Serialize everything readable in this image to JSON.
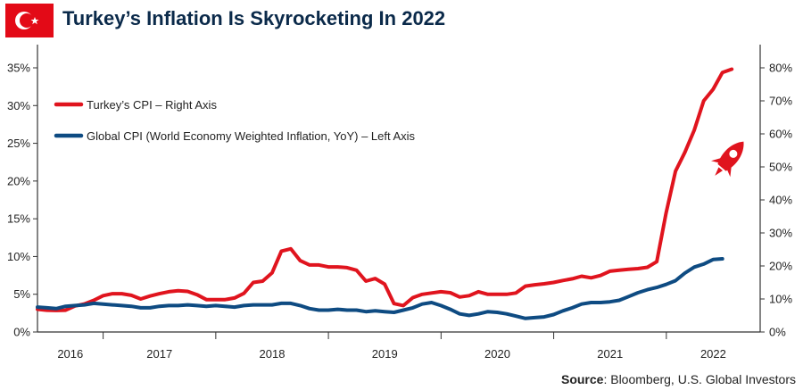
{
  "header": {
    "title": "Turkey’s Inflation Is Skyrocketing In 2022",
    "flag_icon": "turkey-flag-icon"
  },
  "source": {
    "label": "Source",
    "text": ": Bloomberg, U.S. Global Investors"
  },
  "colors": {
    "turkey": "#e0141e",
    "global": "#0e4b82",
    "title": "#0b2a4a",
    "flag": "#e30a17"
  },
  "chart_data": {
    "type": "line",
    "title": "Turkey’s Inflation Is Skyrocketing In 2022",
    "x_tick_labels": [
      "2016",
      "2017",
      "2018",
      "2019",
      "2020",
      "2021",
      "2022"
    ],
    "x_range": [
      2015.917,
      2022.333
    ],
    "y_left": {
      "ticks": [
        "0%",
        "5%",
        "10%",
        "15%",
        "20%",
        "25%",
        "30%",
        "35%"
      ],
      "range": [
        0,
        35
      ]
    },
    "y_right": {
      "ticks": [
        "0%",
        "10%",
        "20%",
        "30%",
        "40%",
        "50%",
        "60%",
        "70%",
        "80%"
      ],
      "range": [
        0,
        80
      ]
    },
    "legend_position": "top-left",
    "decorative_icon": "rocket-icon",
    "series": [
      {
        "name": "Turkey’s CPI – Right Axis",
        "axis": "right",
        "x_start": 2015.917,
        "x_step": 0.0833,
        "values": [
          6.9,
          6.6,
          6.5,
          6.6,
          7.9,
          8.5,
          9.6,
          11.0,
          11.6,
          11.6,
          11.1,
          10.0,
          10.9,
          11.6,
          12.2,
          12.5,
          12.3,
          11.3,
          9.8,
          9.8,
          9.8,
          10.3,
          11.7,
          15.0,
          15.4,
          17.9,
          24.5,
          25.2,
          21.6,
          20.3,
          20.3,
          19.7,
          19.7,
          19.5,
          18.7,
          15.4,
          16.2,
          14.5,
          8.6,
          8.0,
          10.4,
          11.4,
          11.8,
          12.2,
          11.9,
          10.6,
          11.0,
          12.2,
          11.4,
          11.4,
          11.4,
          11.8,
          13.9,
          14.3,
          14.6,
          15.0,
          15.6,
          16.1,
          16.9,
          16.4,
          17.1,
          18.4,
          18.7,
          19.0,
          19.2,
          19.6,
          21.3,
          36.1,
          48.7,
          54.4,
          61.1,
          70.0,
          73.5,
          78.6,
          79.6
        ]
      },
      {
        "name": "Global CPI (World Economy Weighted Inflation, YoY) – Left Axis",
        "axis": "left",
        "x_start": 2015.917,
        "x_step": 0.0833,
        "values": [
          3.3,
          3.2,
          3.1,
          3.4,
          3.5,
          3.6,
          3.8,
          3.7,
          3.6,
          3.5,
          3.4,
          3.2,
          3.2,
          3.4,
          3.5,
          3.5,
          3.6,
          3.5,
          3.4,
          3.5,
          3.4,
          3.3,
          3.5,
          3.6,
          3.6,
          3.6,
          3.8,
          3.8,
          3.5,
          3.1,
          2.9,
          2.9,
          3.0,
          2.9,
          2.9,
          2.7,
          2.8,
          2.7,
          2.6,
          2.9,
          3.2,
          3.7,
          3.9,
          3.5,
          3.0,
          2.4,
          2.2,
          2.4,
          2.7,
          2.6,
          2.4,
          2.1,
          1.8,
          1.9,
          2.0,
          2.3,
          2.8,
          3.2,
          3.7,
          3.9,
          3.9,
          4.0,
          4.2,
          4.7,
          5.2,
          5.6,
          5.9,
          6.3,
          6.8,
          7.8,
          8.6,
          9.0,
          9.6,
          9.7
        ]
      }
    ]
  }
}
